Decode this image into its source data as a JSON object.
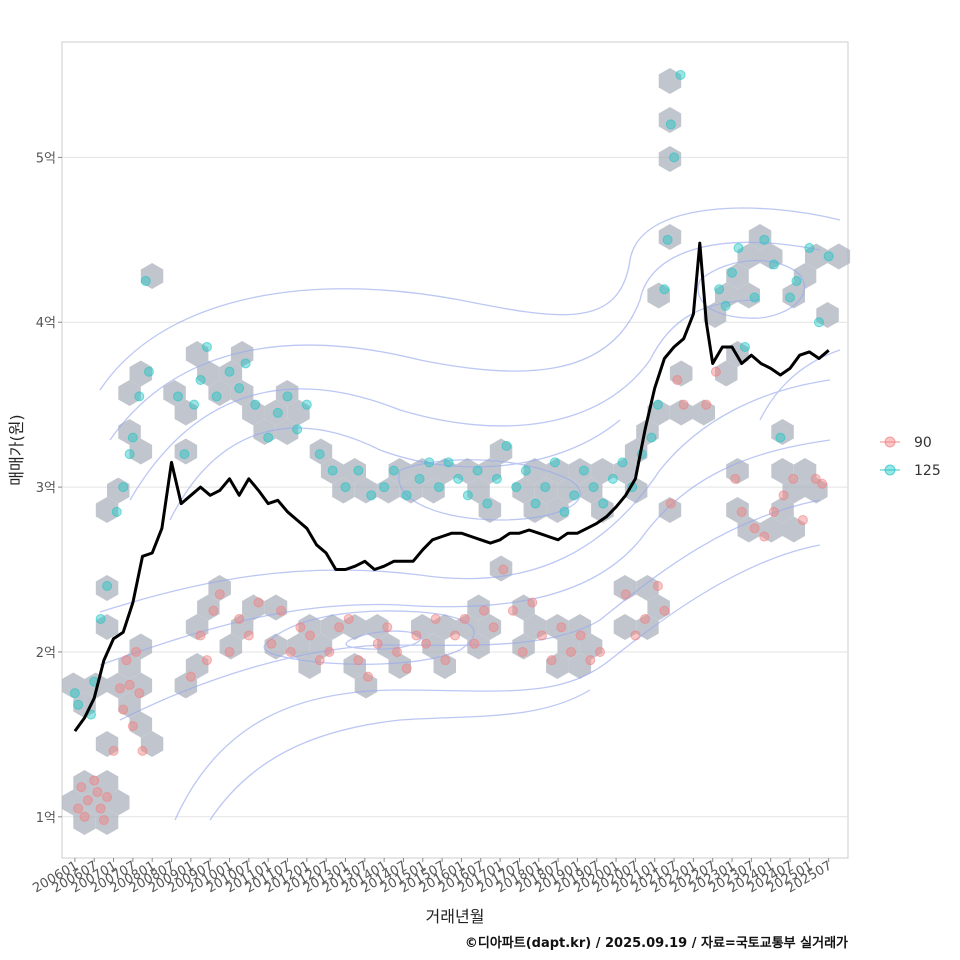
{
  "chart_data": {
    "type": "scatter",
    "title": "",
    "xlabel": "거래년월",
    "ylabel": "매매가(원)",
    "caption": "©디아파트(dapt.kr) / 2025.09.19 / 자료=국토교통부 실거래가",
    "x_ticks": [
      "200601",
      "200607",
      "200701",
      "200707",
      "200801",
      "200807",
      "200901",
      "200907",
      "201001",
      "201007",
      "201101",
      "201107",
      "201201",
      "201207",
      "201301",
      "201307",
      "201401",
      "201407",
      "201501",
      "201507",
      "201601",
      "201607",
      "201701",
      "201707",
      "201801",
      "201807",
      "201901",
      "201907",
      "202001",
      "202007",
      "202101",
      "202107",
      "202201",
      "202207",
      "202301",
      "202307",
      "202401",
      "202407",
      "202501",
      "202507"
    ],
    "y_ticks": [
      {
        "value": 1,
        "label": "1억"
      },
      {
        "value": 2,
        "label": "2억"
      },
      {
        "value": 3,
        "label": "3억"
      },
      {
        "value": 4,
        "label": "4억"
      },
      {
        "value": 5,
        "label": "5억"
      }
    ],
    "xlim": [
      "2005-09",
      "2026-01"
    ],
    "ylim": [
      0.75,
      5.7
    ],
    "grid": true,
    "legend_position": "right",
    "legend": [
      {
        "label": "90",
        "color": "#f08080"
      },
      {
        "label": "125",
        "color": "#20c5c5"
      }
    ],
    "series": [
      {
        "name": "90",
        "color": "#f08080",
        "type": "scatter",
        "points": [
          [
            "2006-02",
            1.05
          ],
          [
            "2006-03",
            1.18
          ],
          [
            "2006-04",
            1.0
          ],
          [
            "2006-05",
            1.1
          ],
          [
            "2006-07",
            1.22
          ],
          [
            "2006-08",
            1.15
          ],
          [
            "2006-09",
            1.05
          ],
          [
            "2006-10",
            0.98
          ],
          [
            "2006-11",
            1.12
          ],
          [
            "2007-01",
            1.4
          ],
          [
            "2007-03",
            1.78
          ],
          [
            "2007-04",
            1.65
          ],
          [
            "2007-05",
            1.95
          ],
          [
            "2007-06",
            1.8
          ],
          [
            "2007-07",
            1.55
          ],
          [
            "2007-08",
            2.0
          ],
          [
            "2007-09",
            1.75
          ],
          [
            "2007-10",
            1.4
          ],
          [
            "2009-01",
            1.85
          ],
          [
            "2009-04",
            2.1
          ],
          [
            "2009-06",
            1.95
          ],
          [
            "2009-08",
            2.25
          ],
          [
            "2009-10",
            2.35
          ],
          [
            "2010-01",
            2.0
          ],
          [
            "2010-04",
            2.2
          ],
          [
            "2010-07",
            2.1
          ],
          [
            "2010-10",
            2.3
          ],
          [
            "2011-02",
            2.05
          ],
          [
            "2011-05",
            2.25
          ],
          [
            "2011-08",
            2.0
          ],
          [
            "2011-11",
            2.15
          ],
          [
            "2012-02",
            2.1
          ],
          [
            "2012-05",
            1.95
          ],
          [
            "2012-08",
            2.0
          ],
          [
            "2012-11",
            2.15
          ],
          [
            "2013-02",
            2.2
          ],
          [
            "2013-05",
            1.95
          ],
          [
            "2013-08",
            1.85
          ],
          [
            "2013-11",
            2.05
          ],
          [
            "2014-02",
            2.15
          ],
          [
            "2014-05",
            2.0
          ],
          [
            "2014-08",
            1.9
          ],
          [
            "2014-11",
            2.1
          ],
          [
            "2015-02",
            2.05
          ],
          [
            "2015-05",
            2.2
          ],
          [
            "2015-08",
            1.95
          ],
          [
            "2015-11",
            2.1
          ],
          [
            "2016-02",
            2.2
          ],
          [
            "2016-05",
            2.05
          ],
          [
            "2016-08",
            2.25
          ],
          [
            "2016-11",
            2.15
          ],
          [
            "2017-02",
            2.5
          ],
          [
            "2017-05",
            2.25
          ],
          [
            "2017-08",
            2.0
          ],
          [
            "2017-11",
            2.3
          ],
          [
            "2018-02",
            2.1
          ],
          [
            "2018-05",
            1.95
          ],
          [
            "2018-08",
            2.15
          ],
          [
            "2018-11",
            2.0
          ],
          [
            "2019-02",
            2.1
          ],
          [
            "2019-05",
            1.95
          ],
          [
            "2019-08",
            2.0
          ],
          [
            "2020-04",
            2.35
          ],
          [
            "2020-07",
            2.1
          ],
          [
            "2020-10",
            2.2
          ],
          [
            "2021-02",
            2.4
          ],
          [
            "2021-04",
            2.25
          ],
          [
            "2021-06",
            2.9
          ],
          [
            "2021-08",
            3.65
          ],
          [
            "2021-10",
            3.5
          ],
          [
            "2022-05",
            3.5
          ],
          [
            "2022-08",
            3.7
          ],
          [
            "2023-02",
            3.05
          ],
          [
            "2023-04",
            2.85
          ],
          [
            "2023-08",
            2.75
          ],
          [
            "2023-11",
            2.7
          ],
          [
            "2024-02",
            2.85
          ],
          [
            "2024-05",
            2.95
          ],
          [
            "2024-08",
            3.05
          ],
          [
            "2024-11",
            2.8
          ],
          [
            "2025-03",
            3.05
          ],
          [
            "2025-05",
            3.02
          ]
        ]
      },
      {
        "name": "125",
        "color": "#20c5c5",
        "type": "scatter",
        "points": [
          [
            "2006-01",
            1.75
          ],
          [
            "2006-02",
            1.68
          ],
          [
            "2006-06",
            1.62
          ],
          [
            "2006-07",
            1.82
          ],
          [
            "2006-09",
            2.2
          ],
          [
            "2006-11",
            2.4
          ],
          [
            "2007-02",
            2.85
          ],
          [
            "2007-04",
            3.0
          ],
          [
            "2007-06",
            3.2
          ],
          [
            "2007-07",
            3.3
          ],
          [
            "2007-09",
            3.55
          ],
          [
            "2007-11",
            4.25
          ],
          [
            "2007-12",
            3.7
          ],
          [
            "2008-09",
            3.55
          ],
          [
            "2008-11",
            3.2
          ],
          [
            "2009-02",
            3.5
          ],
          [
            "2009-04",
            3.65
          ],
          [
            "2009-06",
            3.85
          ],
          [
            "2009-09",
            3.55
          ],
          [
            "2010-01",
            3.7
          ],
          [
            "2010-04",
            3.6
          ],
          [
            "2010-06",
            3.75
          ],
          [
            "2010-09",
            3.5
          ],
          [
            "2011-01",
            3.3
          ],
          [
            "2011-04",
            3.45
          ],
          [
            "2011-07",
            3.55
          ],
          [
            "2011-10",
            3.35
          ],
          [
            "2012-01",
            3.5
          ],
          [
            "2012-05",
            3.2
          ],
          [
            "2012-09",
            3.1
          ],
          [
            "2013-01",
            3.0
          ],
          [
            "2013-05",
            3.1
          ],
          [
            "2013-09",
            2.95
          ],
          [
            "2014-01",
            3.0
          ],
          [
            "2014-04",
            3.1
          ],
          [
            "2014-08",
            2.95
          ],
          [
            "2014-12",
            3.05
          ],
          [
            "2015-03",
            3.15
          ],
          [
            "2015-06",
            3.0
          ],
          [
            "2015-09",
            3.15
          ],
          [
            "2015-12",
            3.05
          ],
          [
            "2016-03",
            2.95
          ],
          [
            "2016-06",
            3.1
          ],
          [
            "2016-09",
            2.9
          ],
          [
            "2016-12",
            3.05
          ],
          [
            "2017-03",
            3.25
          ],
          [
            "2017-06",
            3.0
          ],
          [
            "2017-09",
            3.1
          ],
          [
            "2017-12",
            2.9
          ],
          [
            "2018-03",
            3.0
          ],
          [
            "2018-06",
            3.15
          ],
          [
            "2018-09",
            2.85
          ],
          [
            "2018-12",
            2.95
          ],
          [
            "2019-03",
            3.1
          ],
          [
            "2019-06",
            3.0
          ],
          [
            "2019-09",
            2.9
          ],
          [
            "2019-12",
            3.05
          ],
          [
            "2020-03",
            3.15
          ],
          [
            "2020-06",
            3.0
          ],
          [
            "2020-09",
            3.2
          ],
          [
            "2020-12",
            3.3
          ],
          [
            "2021-02",
            3.5
          ],
          [
            "2021-04",
            4.2
          ],
          [
            "2021-05",
            4.5
          ],
          [
            "2021-06",
            5.2
          ],
          [
            "2021-07",
            5.0
          ],
          [
            "2021-09",
            5.5
          ],
          [
            "2022-09",
            4.2
          ],
          [
            "2022-11",
            4.1
          ],
          [
            "2023-01",
            4.3
          ],
          [
            "2023-03",
            4.45
          ],
          [
            "2023-05",
            3.85
          ],
          [
            "2023-08",
            4.15
          ],
          [
            "2023-11",
            4.5
          ],
          [
            "2024-02",
            4.35
          ],
          [
            "2024-04",
            3.3
          ],
          [
            "2024-07",
            4.15
          ],
          [
            "2024-09",
            4.25
          ],
          [
            "2025-01",
            4.45
          ],
          [
            "2025-04",
            4.0
          ],
          [
            "2025-07",
            4.4
          ]
        ]
      },
      {
        "name": "",
        "color": "#000000",
        "type": "line",
        "points": [
          [
            "2006-01",
            1.52
          ],
          [
            "2006-04",
            1.6
          ],
          [
            "2006-07",
            1.72
          ],
          [
            "2006-10",
            1.95
          ],
          [
            "2007-01",
            2.08
          ],
          [
            "2007-04",
            2.12
          ],
          [
            "2007-07",
            2.3
          ],
          [
            "2007-10",
            2.58
          ],
          [
            "2008-01",
            2.6
          ],
          [
            "2008-04",
            2.75
          ],
          [
            "2008-07",
            3.15
          ],
          [
            "2008-10",
            2.9
          ],
          [
            "2009-01",
            2.95
          ],
          [
            "2009-04",
            3.0
          ],
          [
            "2009-07",
            2.95
          ],
          [
            "2009-10",
            2.98
          ],
          [
            "2010-01",
            3.05
          ],
          [
            "2010-04",
            2.95
          ],
          [
            "2010-07",
            3.05
          ],
          [
            "2010-10",
            2.98
          ],
          [
            "2011-01",
            2.9
          ],
          [
            "2011-04",
            2.92
          ],
          [
            "2011-07",
            2.85
          ],
          [
            "2011-10",
            2.8
          ],
          [
            "2012-01",
            2.75
          ],
          [
            "2012-04",
            2.65
          ],
          [
            "2012-07",
            2.6
          ],
          [
            "2012-10",
            2.5
          ],
          [
            "2013-01",
            2.5
          ],
          [
            "2013-04",
            2.52
          ],
          [
            "2013-07",
            2.55
          ],
          [
            "2013-10",
            2.5
          ],
          [
            "2014-01",
            2.52
          ],
          [
            "2014-04",
            2.55
          ],
          [
            "2014-07",
            2.55
          ],
          [
            "2014-10",
            2.55
          ],
          [
            "2015-01",
            2.62
          ],
          [
            "2015-04",
            2.68
          ],
          [
            "2015-07",
            2.7
          ],
          [
            "2015-10",
            2.72
          ],
          [
            "2016-01",
            2.72
          ],
          [
            "2016-04",
            2.7
          ],
          [
            "2016-07",
            2.68
          ],
          [
            "2016-10",
            2.66
          ],
          [
            "2017-01",
            2.68
          ],
          [
            "2017-04",
            2.72
          ],
          [
            "2017-07",
            2.72
          ],
          [
            "2017-10",
            2.74
          ],
          [
            "2018-01",
            2.72
          ],
          [
            "2018-04",
            2.7
          ],
          [
            "2018-07",
            2.68
          ],
          [
            "2018-10",
            2.72
          ],
          [
            "2019-01",
            2.72
          ],
          [
            "2019-04",
            2.75
          ],
          [
            "2019-07",
            2.78
          ],
          [
            "2019-10",
            2.82
          ],
          [
            "2020-01",
            2.88
          ],
          [
            "2020-04",
            2.95
          ],
          [
            "2020-07",
            3.05
          ],
          [
            "2020-10",
            3.35
          ],
          [
            "2021-01",
            3.6
          ],
          [
            "2021-04",
            3.78
          ],
          [
            "2021-07",
            3.85
          ],
          [
            "2021-10",
            3.9
          ],
          [
            "2022-01",
            4.05
          ],
          [
            "2022-03",
            4.48
          ],
          [
            "2022-05",
            4.0
          ],
          [
            "2022-07",
            3.75
          ],
          [
            "2022-10",
            3.85
          ],
          [
            "2023-01",
            3.85
          ],
          [
            "2023-04",
            3.75
          ],
          [
            "2023-07",
            3.8
          ],
          [
            "2023-10",
            3.75
          ],
          [
            "2024-01",
            3.72
          ],
          [
            "2024-04",
            3.68
          ],
          [
            "2024-07",
            3.72
          ],
          [
            "2024-10",
            3.8
          ],
          [
            "2025-01",
            3.82
          ],
          [
            "2025-04",
            3.78
          ],
          [
            "2025-07",
            3.83
          ]
        ]
      }
    ]
  }
}
